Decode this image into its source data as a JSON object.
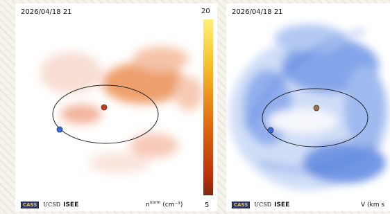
{
  "panels": [
    {
      "timestamp": "2026/04/18 21",
      "colorbar_max": 20,
      "colorbar_min": 5,
      "unit_symbol": "n",
      "unit_sup": "norm",
      "unit_rest": "(cm⁻³)",
      "logos": [
        "CASS",
        "UCSD",
        "ISEE"
      ]
    },
    {
      "timestamp": "2026/04/18 21",
      "unit_label": "V (km s",
      "logos": [
        "CASS",
        "UCSD",
        "ISEE"
      ]
    }
  ]
}
